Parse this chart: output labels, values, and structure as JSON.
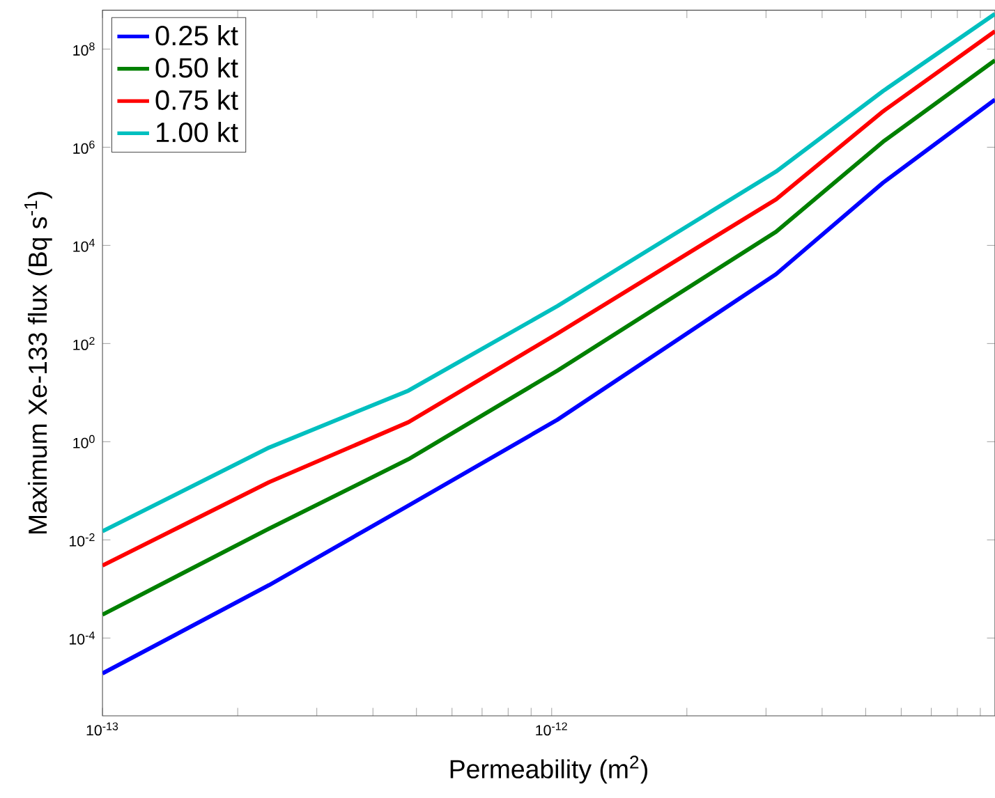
{
  "chart_data": {
    "type": "line",
    "xlabel": "Permeability (m$^{2}$)",
    "ylabel": "Maximum Xe-133 flux (Bq s$^{-1}$)",
    "log": "xy",
    "legend": "top left",
    "x": [
      1e-13,
      2.35e-13,
      4.8e-13,
      1.03e-12,
      3.16e-12,
      5.47e-12,
      9.7e-12
    ],
    "xlim": [
      1e-13,
      9.7e-12
    ],
    "xticks": [
      {
        "value": 1e-13,
        "label": "10$^{-13}$"
      },
      {
        "value": 2e-13,
        "label": null
      },
      {
        "value": 3e-13,
        "label": null
      },
      {
        "value": 4e-13,
        "label": null
      },
      {
        "value": 5e-13,
        "label": null
      },
      {
        "value": 6e-13,
        "label": null
      },
      {
        "value": 7e-13,
        "label": null
      },
      {
        "value": 8e-13,
        "label": null
      },
      {
        "value": 9e-13,
        "label": null
      },
      {
        "value": 1e-12,
        "label": "10$^{-12}$"
      },
      {
        "value": 2e-12,
        "label": null
      },
      {
        "value": 3e-12,
        "label": null
      },
      {
        "value": 4e-12,
        "label": null
      },
      {
        "value": 5e-12,
        "label": null
      },
      {
        "value": 6e-12,
        "label": null
      },
      {
        "value": 7e-12,
        "label": null
      },
      {
        "value": 8e-12,
        "label": null
      },
      {
        "value": 9e-12,
        "label": null
      }
    ],
    "ylim": [
      2.6e-06,
      620000000.0
    ],
    "yticks": [
      {
        "value": 0.0001,
        "label": "10$^{-4}$"
      },
      {
        "value": 0.01,
        "label": "10$^{-2}$"
      },
      {
        "value": 1,
        "label": "10$^{0}$"
      },
      {
        "value": 100,
        "label": "10$^{2}$"
      },
      {
        "value": 10000.0,
        "label": "10$^{4}$"
      },
      {
        "value": 1000000.0,
        "label": "10$^{6}$"
      },
      {
        "value": 100000000.0,
        "label": "10$^{8}$"
      }
    ],
    "series": [
      {
        "name": "0.25 kt",
        "color": "#0000ff",
        "values": [
          1.9e-05,
          0.0012,
          0.05,
          2.8,
          2600,
          190000.0,
          9300000.0
        ]
      },
      {
        "name": "0.50 kt",
        "color": "#008000",
        "values": [
          0.0003,
          0.017,
          0.44,
          28,
          19000.0,
          1300000.0,
          59000000.0
        ]
      },
      {
        "name": "0.75 kt",
        "color": "#ff0000",
        "values": [
          0.003,
          0.15,
          2.5,
          160,
          87000.0,
          5400000.0,
          230000000.0
        ]
      },
      {
        "name": "1.00 kt",
        "color": "#00bfbf",
        "values": [
          0.015,
          0.76,
          11,
          580,
          320000.0,
          14000000.0,
          520000000.0
        ]
      }
    ]
  }
}
